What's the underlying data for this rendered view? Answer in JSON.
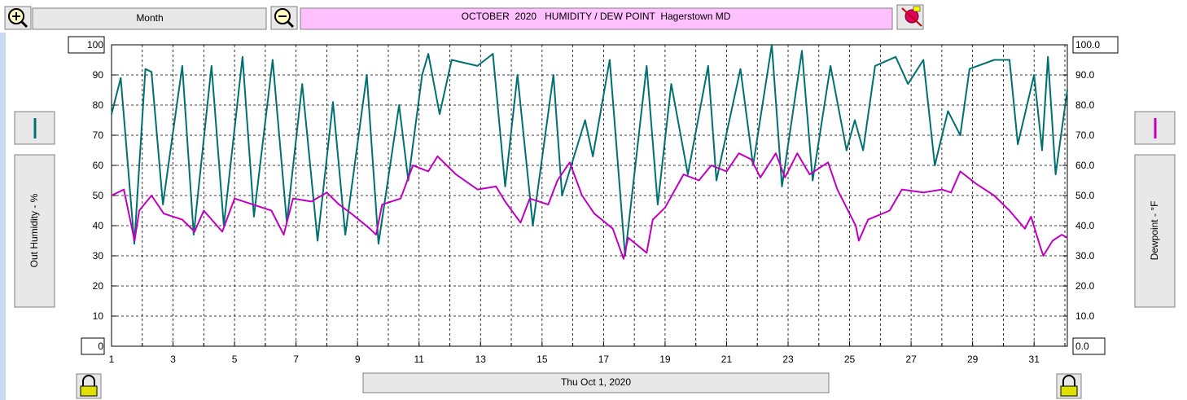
{
  "ui": {
    "period_button": "Month",
    "date_button": "Thu Oct 1, 2020"
  },
  "chart_data": {
    "type": "line",
    "title": "OCTOBER  2020   HUMIDITY / DEW POINT  Hagerstown MD",
    "xlim": [
      1,
      32.08
    ],
    "xticks": [
      1,
      3,
      5,
      7,
      9,
      11,
      13,
      15,
      17,
      19,
      21,
      23,
      25,
      27,
      29,
      31
    ],
    "xminor": [
      2,
      4,
      6,
      8,
      10,
      12,
      14,
      16,
      18,
      20,
      22,
      24,
      26,
      28,
      30,
      32
    ],
    "ylim": [
      0,
      100
    ],
    "yticks": [
      0,
      10,
      20,
      30,
      40,
      50,
      60,
      70,
      80,
      90,
      100
    ],
    "y2lim": [
      0,
      100
    ],
    "y2ticks": [
      {
        "value": 0,
        "label": "0.0"
      },
      {
        "value": 10,
        "label": "10.0"
      },
      {
        "value": 20,
        "label": "20.0"
      },
      {
        "value": 30,
        "label": "30.0"
      },
      {
        "value": 40,
        "label": "40.0"
      },
      {
        "value": 50,
        "label": "50.0"
      },
      {
        "value": 60,
        "label": "60.0"
      },
      {
        "value": 70,
        "label": "70.0"
      },
      {
        "value": 80,
        "label": "80.0"
      },
      {
        "value": 90,
        "label": "90.0"
      },
      {
        "value": 100,
        "label": "100.0"
      }
    ],
    "grid": true,
    "series": [
      {
        "name": "Out Humidity - %",
        "color": "#007070",
        "x": [
          1,
          1.3,
          1.74,
          2.1,
          2.3,
          2.67,
          3.3,
          3.67,
          4.25,
          4.65,
          5.26,
          5.63,
          6.24,
          6.7,
          7.2,
          7.7,
          8.2,
          8.6,
          9.3,
          9.68,
          10.35,
          10.65,
          11.1,
          11.3,
          11.67,
          12.06,
          12.9,
          13.4,
          13.8,
          14.2,
          14.7,
          15.37,
          15.65,
          16.4,
          16.65,
          17.2,
          17.7,
          18.4,
          18.76,
          19.2,
          19.74,
          20.4,
          20.67,
          21.45,
          21.86,
          22.47,
          22.8,
          23.45,
          23.8,
          24.38,
          24.9,
          25.17,
          25.44,
          25.83,
          26.5,
          26.9,
          27.4,
          27.77,
          28.2,
          28.6,
          28.9,
          29.7,
          30.2,
          30.47,
          31,
          31.26,
          31.45,
          31.7,
          32.08
        ],
        "values": [
          77,
          89,
          34,
          92,
          91,
          47,
          93,
          37,
          93,
          40,
          96,
          43,
          95,
          41,
          87,
          35,
          81,
          37,
          90,
          34,
          80,
          55,
          90,
          97,
          77,
          95,
          93,
          97,
          53,
          90,
          40,
          90,
          50,
          75,
          63,
          95,
          30,
          93,
          47,
          87,
          57,
          93,
          55,
          92,
          60,
          100,
          53,
          98,
          55,
          93,
          65,
          75,
          65,
          93,
          96,
          87,
          95,
          60,
          78,
          70,
          92,
          95,
          95,
          67,
          90,
          65,
          96,
          57,
          85
        ]
      },
      {
        "name": "Dewpoint - °F",
        "color": "#c000c0",
        "axis": "y2",
        "x": [
          1,
          1.4,
          1.75,
          1.9,
          2.3,
          2.7,
          3.3,
          3.7,
          4.0,
          4.6,
          5.0,
          5.6,
          6.2,
          6.6,
          6.9,
          7.5,
          8.0,
          8.4,
          8.8,
          9.4,
          9.6,
          9.8,
          10.4,
          10.8,
          11.3,
          11.6,
          12.2,
          12.9,
          13.5,
          13.8,
          14.3,
          14.6,
          15.2,
          15.5,
          15.9,
          16.3,
          16.7,
          17.3,
          17.65,
          17.8,
          18.4,
          18.6,
          19.0,
          19.6,
          20.1,
          20.5,
          21.0,
          21.4,
          21.8,
          22.1,
          22.6,
          22.9,
          23.3,
          23.7,
          24.3,
          24.6,
          25.2,
          25.3,
          25.6,
          26.3,
          26.7,
          27.4,
          28.0,
          28.3,
          28.6,
          29.1,
          29.7,
          30.2,
          30.7,
          30.9,
          31.2,
          31.3,
          31.6,
          31.9,
          32.08
        ],
        "values": [
          50,
          52,
          35,
          45,
          50,
          44,
          42,
          38,
          45,
          38,
          49,
          47,
          45,
          37,
          49,
          48,
          51,
          47,
          44,
          39,
          37,
          47,
          49,
          60,
          58,
          63,
          57,
          52,
          53,
          48,
          41,
          49,
          47,
          55,
          61,
          50,
          44,
          39,
          29,
          36,
          31,
          42,
          46,
          57,
          55,
          60,
          58,
          64,
          62,
          56,
          64,
          56,
          64,
          57,
          61,
          52,
          40,
          35,
          42,
          45,
          52,
          51,
          52,
          51,
          58,
          54,
          50,
          45,
          39,
          43,
          33,
          30,
          35,
          37,
          36
        ]
      }
    ]
  }
}
